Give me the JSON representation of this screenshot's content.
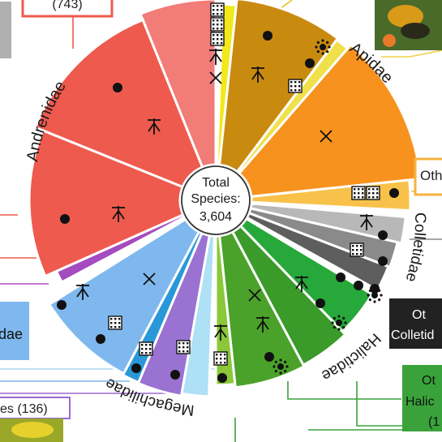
{
  "center": {
    "line1": "Total",
    "line2": "Species:",
    "line3": "3,604"
  },
  "families": [
    {
      "name": "Andrenidae",
      "color": "#ee5a4e"
    },
    {
      "name": "Apidae",
      "color": "#f08a1a"
    },
    {
      "name": "Colletidae",
      "color": "#7a7a7a"
    },
    {
      "name": "Halictidae",
      "color": "#3aa23a"
    },
    {
      "name": "Megachilidae",
      "color": "#7fb8ee"
    }
  ],
  "boxes": {
    "top_left": "(743)",
    "right_top": "Oth",
    "right_mid_1": "Ot",
    "right_mid_2": "Colletid",
    "right_bottom_1": "Ot",
    "right_bottom_2": "Halic",
    "right_bottom_3": "(1",
    "left_mid": "dae",
    "bottom_left": "es (136)"
  },
  "icons": [
    "dot-icon",
    "plant-icon",
    "cross-icon",
    "grid-icon",
    "sun-icon"
  ]
}
